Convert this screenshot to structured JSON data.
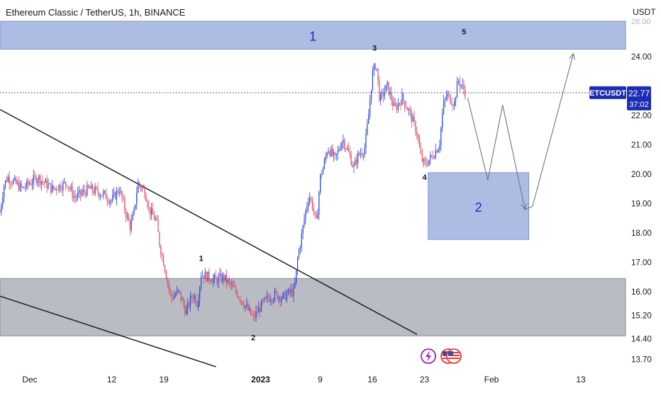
{
  "header": {
    "symbol_title": "Ethereum Classic / TetherUS, 1h, BINANCE"
  },
  "chart_data": {
    "type": "candlestick",
    "title": "Ethereum Classic / TetherUS, 1h, BINANCE",
    "currency_label": "USDT",
    "price_scale": {
      "ticks": [
        "24.00",
        "22.00",
        "21.00",
        "20.00",
        "19.00",
        "18.00",
        "17.00",
        "16.00",
        "15.20",
        "14.40",
        "13.70"
      ],
      "range": [
        13.4,
        25.2
      ]
    },
    "time_axis": {
      "labels": [
        "Dec",
        "12",
        "19",
        "2023",
        "9",
        "16",
        "23",
        "Feb",
        "13"
      ],
      "label_days": [
        0,
        11,
        18,
        31,
        39,
        46,
        53,
        62,
        74
      ],
      "range_days": [
        -4,
        80
      ]
    },
    "current_price": {
      "symbol": "ETCUSDT",
      "price": 22.77,
      "price_label": "22.77",
      "countdown": "37:02"
    },
    "price_path": [
      {
        "day": -4,
        "price": 18.7
      },
      {
        "day": -3.5,
        "price": 19.6
      },
      {
        "day": -3,
        "price": 19.9
      },
      {
        "day": -1,
        "price": 19.5
      },
      {
        "day": 1,
        "price": 19.9
      },
      {
        "day": 3,
        "price": 19.5
      },
      {
        "day": 5,
        "price": 19.7
      },
      {
        "day": 6,
        "price": 19.2
      },
      {
        "day": 8,
        "price": 19.5
      },
      {
        "day": 10,
        "price": 19.3
      },
      {
        "day": 11,
        "price": 19.1
      },
      {
        "day": 12,
        "price": 19.5
      },
      {
        "day": 13,
        "price": 18.6
      },
      {
        "day": 13.5,
        "price": 18.2
      },
      {
        "day": 14,
        "price": 18.7
      },
      {
        "day": 14.5,
        "price": 19.7
      },
      {
        "day": 15.5,
        "price": 19.4
      },
      {
        "day": 16,
        "price": 18.8
      },
      {
        "day": 17,
        "price": 18.4
      },
      {
        "day": 17.5,
        "price": 17.5
      },
      {
        "day": 18,
        "price": 17.0
      },
      {
        "day": 18.6,
        "price": 16.2
      },
      {
        "day": 19,
        "price": 15.8
      },
      {
        "day": 20,
        "price": 16.0
      },
      {
        "day": 21,
        "price": 15.3
      },
      {
        "day": 21.5,
        "price": 15.7
      },
      {
        "day": 22,
        "price": 15.9
      },
      {
        "day": 22.5,
        "price": 15.6
      },
      {
        "day": 23,
        "price": 16.6
      },
      {
        "day": 24,
        "price": 16.5
      },
      {
        "day": 25,
        "price": 16.4
      },
      {
        "day": 26,
        "price": 16.5
      },
      {
        "day": 27,
        "price": 16.2
      },
      {
        "day": 28,
        "price": 15.9
      },
      {
        "day": 29,
        "price": 15.5
      },
      {
        "day": 30,
        "price": 15.1
      },
      {
        "day": 31,
        "price": 15.5
      },
      {
        "day": 32,
        "price": 15.8
      },
      {
        "day": 33,
        "price": 15.9
      },
      {
        "day": 34,
        "price": 15.8
      },
      {
        "day": 35,
        "price": 16.0
      },
      {
        "day": 35.5,
        "price": 16.0
      },
      {
        "day": 36,
        "price": 17.2
      },
      {
        "day": 36.5,
        "price": 17.9
      },
      {
        "day": 37,
        "price": 18.7
      },
      {
        "day": 37.5,
        "price": 19.3
      },
      {
        "day": 38,
        "price": 18.9
      },
      {
        "day": 38.5,
        "price": 18.3
      },
      {
        "day": 39,
        "price": 19.9
      },
      {
        "day": 39.5,
        "price": 20.3
      },
      {
        "day": 40,
        "price": 20.9
      },
      {
        "day": 41,
        "price": 20.5
      },
      {
        "day": 42,
        "price": 21.2
      },
      {
        "day": 43,
        "price": 20.6
      },
      {
        "day": 43.5,
        "price": 20.2
      },
      {
        "day": 44,
        "price": 20.6
      },
      {
        "day": 45,
        "price": 20.9
      },
      {
        "day": 45.5,
        "price": 22.0
      },
      {
        "day": 46,
        "price": 23.4
      },
      {
        "day": 46.5,
        "price": 23.8
      },
      {
        "day": 47,
        "price": 22.5
      },
      {
        "day": 48,
        "price": 23.0
      },
      {
        "day": 49,
        "price": 22.2
      },
      {
        "day": 50,
        "price": 22.6
      },
      {
        "day": 51,
        "price": 22.1
      },
      {
        "day": 52,
        "price": 21.4
      },
      {
        "day": 52.5,
        "price": 20.6
      },
      {
        "day": 53,
        "price": 20.3
      },
      {
        "day": 54,
        "price": 20.6
      },
      {
        "day": 55,
        "price": 21.0
      },
      {
        "day": 55.5,
        "price": 22.3
      },
      {
        "day": 56,
        "price": 22.7
      },
      {
        "day": 57,
        "price": 22.4
      },
      {
        "day": 57.5,
        "price": 23.2
      },
      {
        "day": 58,
        "price": 23.0
      },
      {
        "day": 58.5,
        "price": 22.77
      }
    ],
    "zones": [
      {
        "name": "resistance-zone",
        "day_start": -4,
        "day_end": 80,
        "price_low": 24.25,
        "price_high": 25.2,
        "label": "1",
        "color": "#9fb0de"
      },
      {
        "name": "support-zone",
        "day_start": 53.5,
        "day_end": 67,
        "price_low": 17.78,
        "price_high": 20.05,
        "label": "2",
        "color": "#9fb0de"
      },
      {
        "name": "gray-zone",
        "day_start": -4,
        "day_end": 80,
        "price_low": 14.5,
        "price_high": 16.45,
        "label": "",
        "color": "#b2b5be"
      }
    ],
    "trendlines": [
      {
        "name": "upper-trendline",
        "start": {
          "day": -4,
          "price": 22.2
        },
        "end": {
          "day": 52,
          "price": 14.55
        }
      },
      {
        "name": "lower-trendline",
        "start": {
          "day": -4,
          "price": 15.85
        },
        "end": {
          "day": 25,
          "price": 13.45
        }
      }
    ],
    "wave_labels": [
      {
        "text": "1",
        "day": 23,
        "price": 17.05
      },
      {
        "text": "2",
        "day": 30,
        "price": 14.35
      },
      {
        "text": "3",
        "day": 46.3,
        "price": 24.2
      },
      {
        "text": "4",
        "day": 53,
        "price": 19.8
      },
      {
        "text": "5",
        "day": 58.3,
        "price": 24.75
      }
    ],
    "projection_path": [
      {
        "day": 58.8,
        "price": 22.6
      },
      {
        "day": 61.5,
        "price": 19.8
      },
      {
        "day": 63.5,
        "price": 22.35
      },
      {
        "day": 66.5,
        "price": 18.8
      },
      {
        "day": 67.5,
        "price": 18.9
      },
      {
        "day": 73,
        "price": 24.1
      }
    ],
    "ylabel": "",
    "xlabel": ""
  }
}
